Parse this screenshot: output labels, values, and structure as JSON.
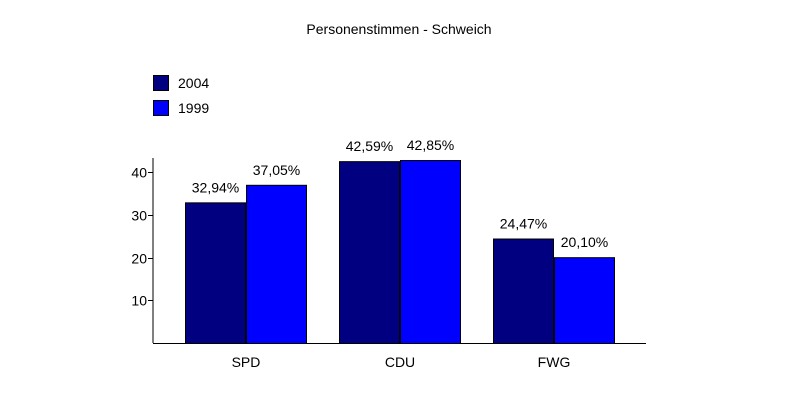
{
  "chart_data": {
    "type": "bar",
    "title": "Personenstimmen - Schweich",
    "categories": [
      "SPD",
      "CDU",
      "FWG"
    ],
    "series": [
      {
        "name": "2004",
        "color": "#000080",
        "values": [
          32.94,
          42.59,
          24.47
        ],
        "labels": [
          "32,94%",
          "42,59%",
          "24,47%"
        ]
      },
      {
        "name": "1999",
        "color": "#0000FF",
        "values": [
          37.05,
          42.85,
          20.1
        ],
        "labels": [
          "37,05%",
          "42,85%",
          "20,10%"
        ]
      }
    ],
    "yticks": [
      "10",
      "20",
      "30",
      "40"
    ],
    "ytick_values": [
      10,
      20,
      30,
      40
    ],
    "ylim": [
      0,
      45
    ],
    "xlabel": "",
    "ylabel": "",
    "grid": false,
    "legend_position": "top-left"
  }
}
